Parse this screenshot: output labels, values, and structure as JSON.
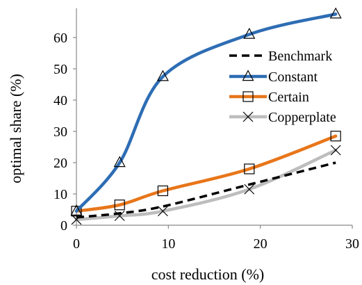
{
  "chart_data": {
    "type": "line",
    "xlabel": "cost reduction (%)",
    "ylabel": "optimal share (%)",
    "xlim": [
      0,
      30
    ],
    "ylim": [
      0,
      68
    ],
    "xticks": [
      "0",
      "10",
      "20",
      "30"
    ],
    "yticks": [
      "0",
      "10",
      "20",
      "30",
      "40",
      "50",
      "60"
    ],
    "grid": false,
    "legend_position": "right",
    "series": [
      {
        "name": "Benchmark",
        "color": "#000000",
        "style": "dashed",
        "marker": "none",
        "x": [
          0,
          4.7,
          9.4,
          18.8,
          28.2
        ],
        "y": [
          2.5,
          3.8,
          6.0,
          13.0,
          20.0
        ]
      },
      {
        "name": "Constant",
        "color": "#2e6db4",
        "style": "solid",
        "marker": "triangle",
        "x": [
          0,
          4.7,
          9.4,
          18.8,
          28.2
        ],
        "y": [
          4.5,
          20.0,
          47.5,
          61.0,
          67.5
        ]
      },
      {
        "name": "Certain",
        "color": "#e8761a",
        "style": "solid",
        "marker": "square",
        "x": [
          0,
          4.7,
          9.4,
          18.8,
          28.2
        ],
        "y": [
          4.5,
          6.5,
          11.0,
          18.0,
          28.5
        ]
      },
      {
        "name": "Copperplate",
        "color": "#bdbdbd",
        "style": "solid",
        "marker": "x",
        "x": [
          0,
          4.7,
          9.4,
          18.8,
          28.2
        ],
        "y": [
          1.8,
          3.0,
          4.5,
          11.5,
          24.0
        ]
      }
    ]
  }
}
